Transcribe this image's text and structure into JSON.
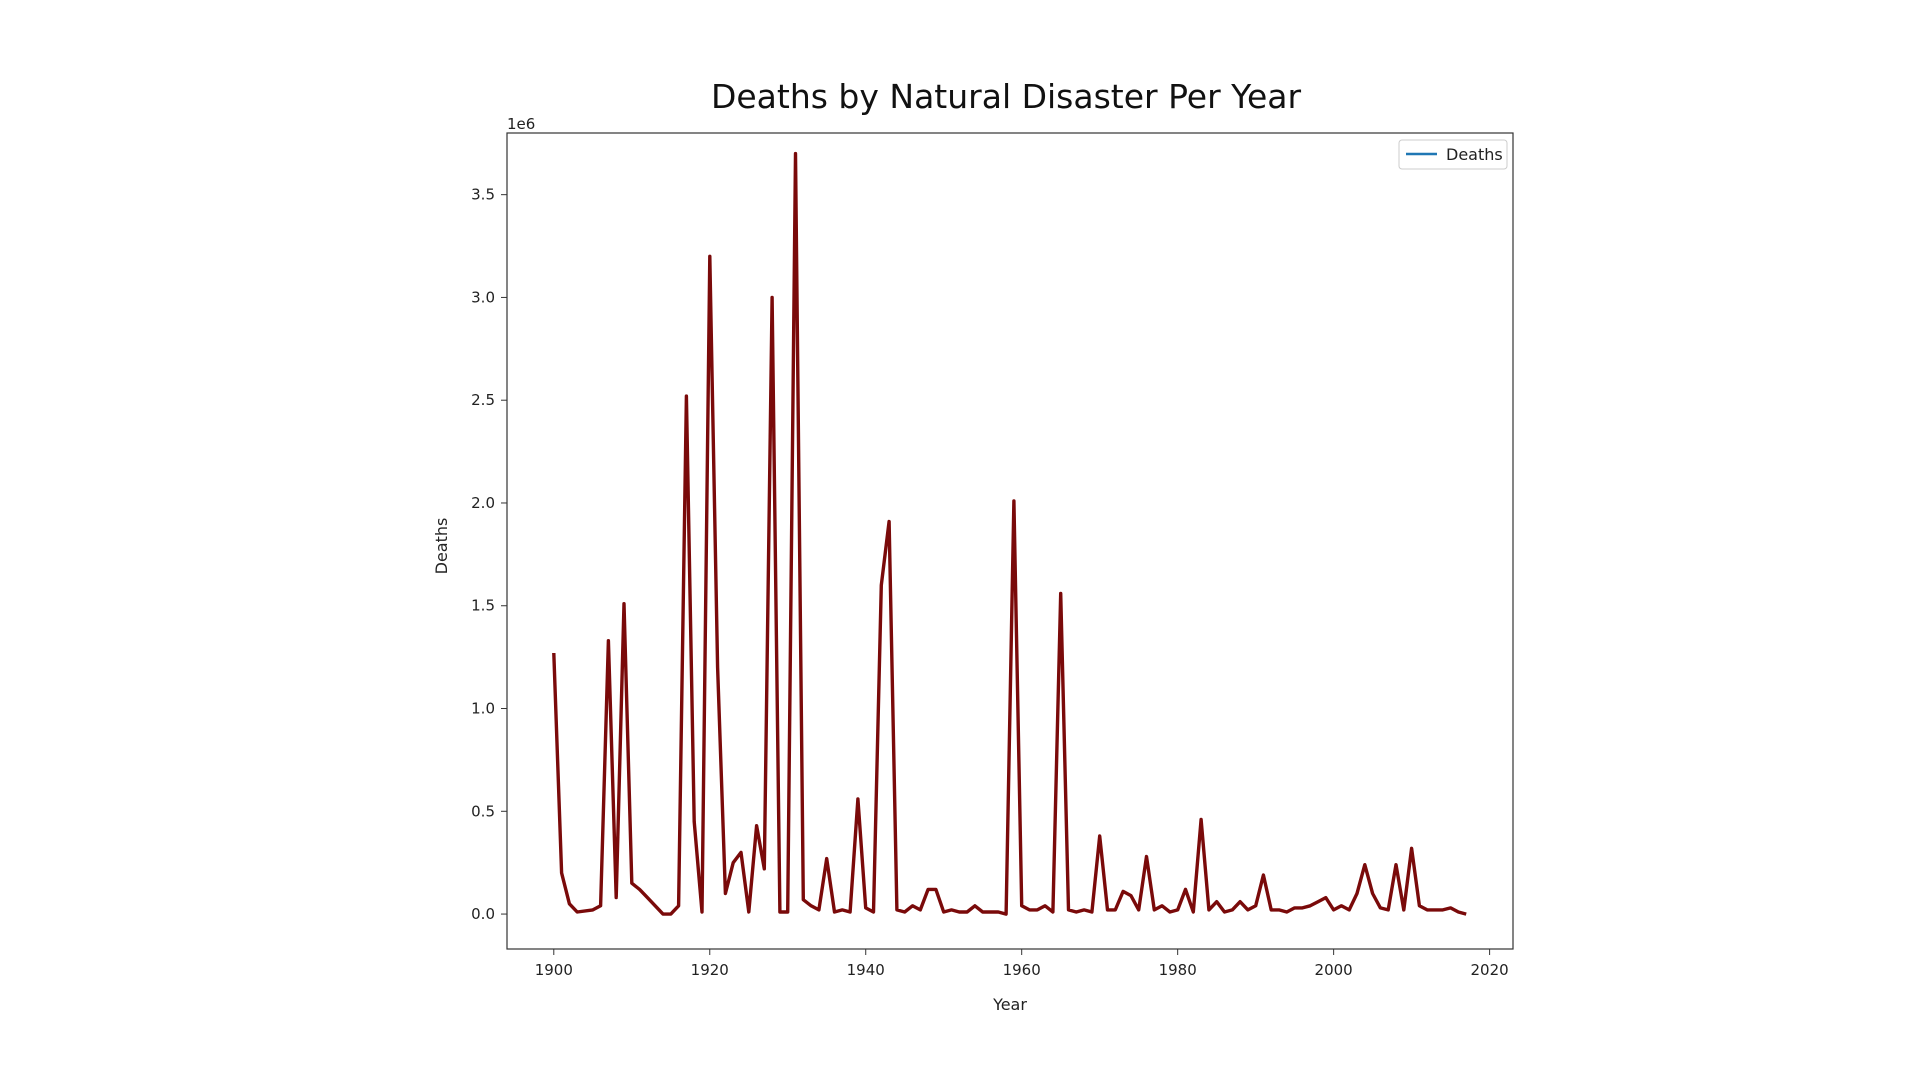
{
  "chart_data": {
    "type": "line",
    "title": "Deaths by Natural Disaster Per Year",
    "xlabel": "Year",
    "ylabel": "Deaths",
    "y_multiplier_label": "1e6",
    "xlim": [
      1894,
      2023
    ],
    "ylim": [
      -0.17,
      3.8
    ],
    "x_ticks": [
      1900,
      1920,
      1940,
      1960,
      1980,
      2000,
      2020
    ],
    "x_tick_labels": [
      "1900",
      "1920",
      "1940",
      "1960",
      "1980",
      "2000",
      "2020"
    ],
    "y_ticks": [
      0.0,
      0.5,
      1.0,
      1.5,
      2.0,
      2.5,
      3.0,
      3.5
    ],
    "y_tick_labels": [
      "0.0",
      "0.5",
      "1.0",
      "1.5",
      "2.0",
      "2.5",
      "3.0",
      "3.5"
    ],
    "grid": false,
    "legend": {
      "position": "top-right",
      "entries": [
        {
          "label": "Deaths",
          "color": "#1f77b4"
        }
      ]
    },
    "line_color": "#7a0a0a",
    "series": [
      {
        "name": "Deaths",
        "x": [
          1900,
          1901,
          1902,
          1903,
          1905,
          1906,
          1907,
          1908,
          1909,
          1910,
          1911,
          1912,
          1913,
          1914,
          1915,
          1916,
          1917,
          1918,
          1919,
          1920,
          1921,
          1922,
          1923,
          1924,
          1925,
          1926,
          1927,
          1928,
          1929,
          1930,
          1931,
          1932,
          1933,
          1934,
          1935,
          1936,
          1937,
          1938,
          1939,
          1940,
          1941,
          1942,
          1943,
          1944,
          1945,
          1946,
          1947,
          1948,
          1949,
          1950,
          1951,
          1952,
          1953,
          1954,
          1955,
          1956,
          1957,
          1958,
          1959,
          1960,
          1961,
          1962,
          1963,
          1964,
          1965,
          1966,
          1967,
          1968,
          1969,
          1970,
          1971,
          1972,
          1973,
          1974,
          1975,
          1976,
          1977,
          1978,
          1979,
          1980,
          1981,
          1982,
          1983,
          1984,
          1985,
          1986,
          1987,
          1988,
          1989,
          1990,
          1991,
          1992,
          1993,
          1994,
          1995,
          1996,
          1997,
          1998,
          1999,
          2000,
          2001,
          2002,
          2003,
          2004,
          2005,
          2006,
          2007,
          2008,
          2009,
          2010,
          2011,
          2012,
          2013,
          2014,
          2015,
          2016,
          2017
        ],
        "values": [
          1.27,
          0.2,
          0.05,
          0.01,
          0.02,
          0.04,
          1.33,
          0.08,
          1.51,
          0.15,
          0.12,
          0.08,
          0.04,
          0.0,
          0.0,
          0.04,
          2.52,
          0.45,
          0.01,
          3.2,
          1.2,
          0.1,
          0.25,
          0.3,
          0.01,
          0.43,
          0.22,
          3.0,
          0.01,
          0.01,
          3.7,
          0.07,
          0.04,
          0.02,
          0.27,
          0.01,
          0.02,
          0.01,
          0.56,
          0.03,
          0.01,
          1.6,
          1.91,
          0.02,
          0.01,
          0.04,
          0.02,
          0.12,
          0.12,
          0.01,
          0.02,
          0.01,
          0.01,
          0.04,
          0.01,
          0.01,
          0.01,
          0.0,
          2.01,
          0.04,
          0.02,
          0.02,
          0.04,
          0.01,
          1.56,
          0.02,
          0.01,
          0.02,
          0.01,
          0.38,
          0.02,
          0.02,
          0.11,
          0.09,
          0.02,
          0.28,
          0.02,
          0.04,
          0.01,
          0.02,
          0.12,
          0.01,
          0.46,
          0.02,
          0.06,
          0.01,
          0.02,
          0.06,
          0.02,
          0.04,
          0.19,
          0.02,
          0.02,
          0.01,
          0.03,
          0.03,
          0.04,
          0.06,
          0.08,
          0.02,
          0.04,
          0.02,
          0.1,
          0.24,
          0.1,
          0.03,
          0.02,
          0.24,
          0.02,
          0.32,
          0.04,
          0.02,
          0.02,
          0.02,
          0.03,
          0.01,
          0.0
        ]
      }
    ]
  }
}
